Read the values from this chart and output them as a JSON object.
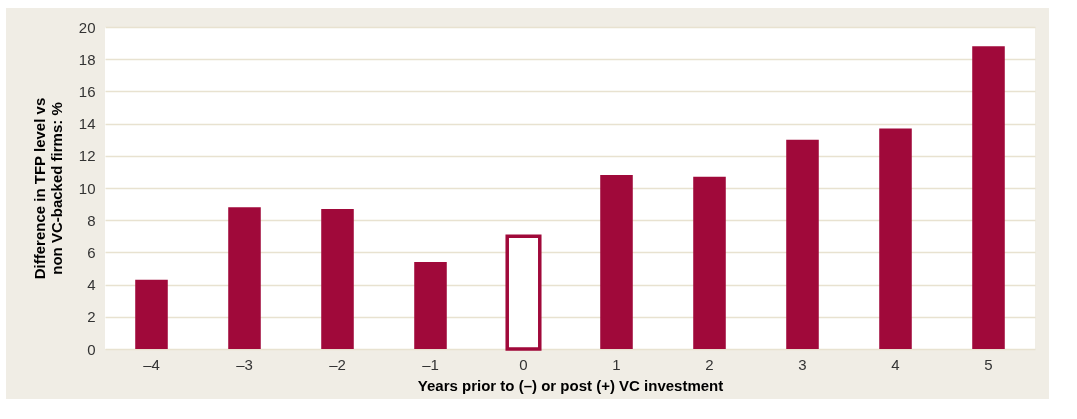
{
  "chart_data": {
    "type": "bar",
    "xlabel": "Years prior to (–) or post (+) VC investment",
    "ylabel": "Difference in TFP level vs non VC-backed firms: %",
    "categories": [
      "–4",
      "–3",
      "–2",
      "–1",
      "0",
      "1",
      "2",
      "3",
      "4",
      "5"
    ],
    "series": [
      {
        "color": "#a0093a",
        "values": [
          4.3,
          8.8,
          8.7,
          5.4,
          null,
          10.8,
          10.7,
          13.0,
          13.7,
          18.8
        ]
      },
      {
        "color": "#ffffff",
        "values": [
          null,
          null,
          null,
          null,
          7.0,
          null,
          null,
          null,
          null,
          null
        ]
      }
    ],
    "ylim": [
      0,
      20
    ],
    "yticks": [
      0,
      2,
      4,
      6,
      8,
      10,
      12,
      14,
      16,
      18,
      20
    ],
    "grid": "y"
  }
}
